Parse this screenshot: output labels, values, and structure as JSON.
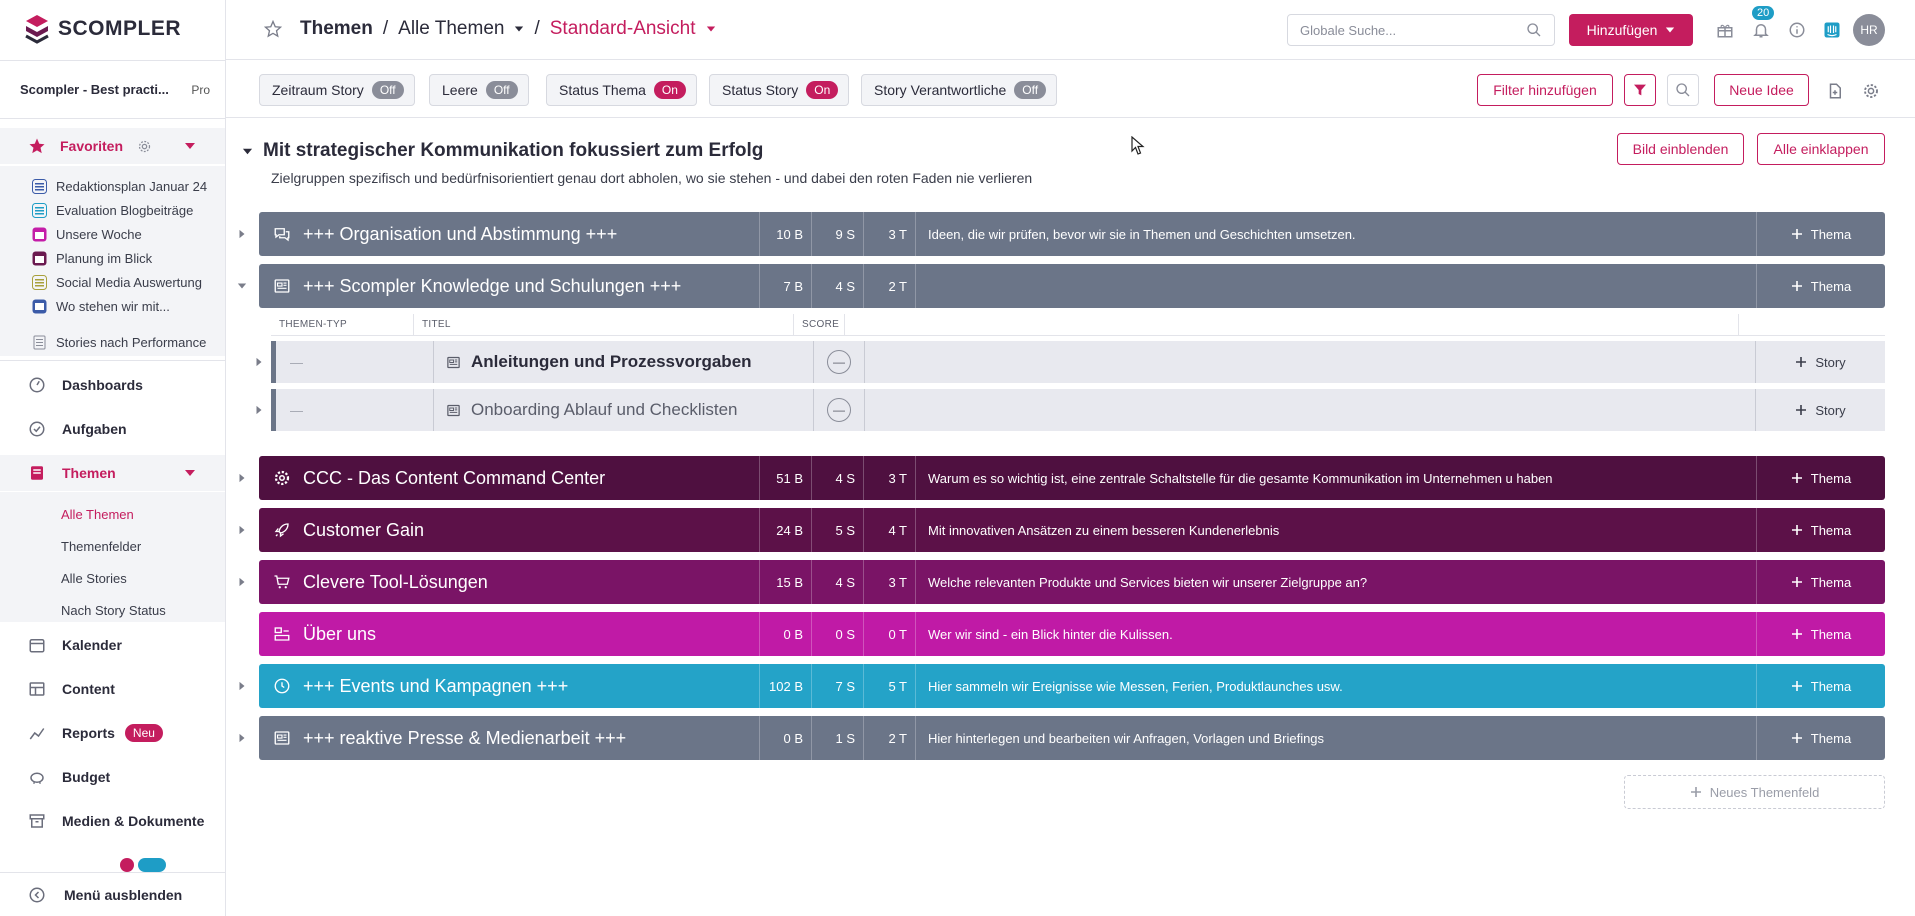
{
  "app": {
    "logo_text": "SCOMPLER"
  },
  "sidebar": {
    "workspace": "Scompler - Best practi...",
    "plan": "Pro",
    "favorites_label": "Favoriten",
    "favorites": [
      {
        "label": "Redaktionsplan Januar 24",
        "color": "#3b5ba8"
      },
      {
        "label": "Evaluation Blogbeiträge",
        "color": "#1e9dc6"
      },
      {
        "label": "Unsere Woche",
        "color": "#c41da8"
      },
      {
        "label": "Planung im Blick",
        "color": "#6b1a50"
      },
      {
        "label": "Social Media Auswertung",
        "color": "#a8a03b"
      },
      {
        "label": "Wo stehen wir mit...",
        "color": "#3b5ba8"
      },
      {
        "label": "Stories nach Performance",
        "color": "#8a8d99"
      }
    ],
    "nav": {
      "dashboards": "Dashboards",
      "aufgaben": "Aufgaben",
      "themen": "Themen",
      "kalender": "Kalender",
      "content": "Content",
      "reports": "Reports",
      "reports_badge": "Neu",
      "budget": "Budget",
      "medien": "Medien & Dokumente"
    },
    "themen_sub": [
      "Alle Themen",
      "Themenfelder",
      "Alle Stories",
      "Nach Story Status"
    ],
    "footer": "Menü ausblenden"
  },
  "topbar": {
    "crumb1": "Themen",
    "sep": "/",
    "crumb2": "Alle Themen",
    "crumb3": "Standard-Ansicht",
    "search_placeholder": "Globale Suche...",
    "add_label": "Hinzufügen",
    "notif_count": "20",
    "avatar": "HR"
  },
  "filters": {
    "chips": [
      {
        "label": "Zeitraum Story",
        "state": "Off"
      },
      {
        "label": "Leere",
        "state": "Off"
      },
      {
        "label": "Status Thema",
        "state": "On"
      },
      {
        "label": "Status Story",
        "state": "On"
      },
      {
        "label": "Story Verantwortliche",
        "state": "Off"
      }
    ],
    "add_filter": "Filter hinzufügen",
    "new_idea": "Neue Idee"
  },
  "main": {
    "title": "Mit strategischer Kommunikation fokussiert zum Erfolg",
    "description": "Zielgruppen spezifisch und bedürfnisorientiert genau dort abholen, wo sie stehen - und dabei den roten Faden nie verlieren",
    "show_image": "Bild einblenden",
    "collapse_all": "Alle einklappen",
    "add_thema": "Thema",
    "add_story": "Story",
    "new_themenfeld": "Neues Themenfeld",
    "themenfelder": [
      {
        "title": "+++ Organisation und Abstimmung +++",
        "b": "10 B",
        "s": "9 S",
        "t": "3 T",
        "desc": "Ideen, die wir prüfen, bevor wir sie in Themen und Geschichten umsetzen.",
        "color": "#6b7588",
        "icon": "chat-icon"
      },
      {
        "title": "+++ Scompler Knowledge und Schulungen +++",
        "b": "7 B",
        "s": "4 S",
        "t": "2 T",
        "desc": "",
        "color": "#6b7588",
        "icon": "newspaper-icon"
      },
      {
        "title": "CCC - Das Content Command Center",
        "b": "51 B",
        "s": "4 S",
        "t": "3 T",
        "desc": "Warum es so wichtig ist, eine zentrale Schaltstelle für die gesamte Kommunikation im Unternehmen u haben",
        "color": "#4f1040",
        "icon": "gear-icon"
      },
      {
        "title": "Customer Gain",
        "b": "24 B",
        "s": "5 S",
        "t": "4 T",
        "desc": "Mit innovativen Ansätzen zu einem besseren Kundenerlebnis",
        "color": "#5c1148",
        "icon": "rocket-icon"
      },
      {
        "title": "Clevere Tool-Lösungen",
        "b": "15 B",
        "s": "4 S",
        "t": "3 T",
        "desc": "Welche relevanten Produkte und Services bieten wir unserer Zielgruppe an?",
        "color": "#7a1466",
        "icon": "cart-icon"
      },
      {
        "title": "Über uns",
        "b": "0 B",
        "s": "0 S",
        "t": "0 T",
        "desc": "Wer wir sind - ein Blick hinter die Kulissen.",
        "color": "#c01aa6",
        "icon": "people-icon"
      },
      {
        "title": "+++ Events und Kampagnen +++",
        "b": "102 B",
        "s": "7 S",
        "t": "5 T",
        "desc": "Hier sammeln wir Ereignisse wie Messen, Ferien, Produktlaunches usw.",
        "color": "#24a3c8",
        "icon": "clock-icon"
      },
      {
        "title": "+++ reaktive Presse & Medienarbeit +++",
        "b": "0 B",
        "s": "1 S",
        "t": "2 T",
        "desc": "Hier hinterlegen und bearbeiten wir Anfragen, Vorlagen und Briefings",
        "color": "#6b7588",
        "icon": "newspaper-icon"
      }
    ],
    "table_head": {
      "type": "THEMEN-TYP",
      "title": "TITEL",
      "score": "SCORE"
    },
    "stories": [
      {
        "type": "—",
        "title": "Anleitungen und Prozessvorgaben",
        "score": "—",
        "bold": true
      },
      {
        "type": "—",
        "title": "Onboarding Ablauf und Checklisten",
        "score": "—",
        "bold": false
      }
    ]
  }
}
